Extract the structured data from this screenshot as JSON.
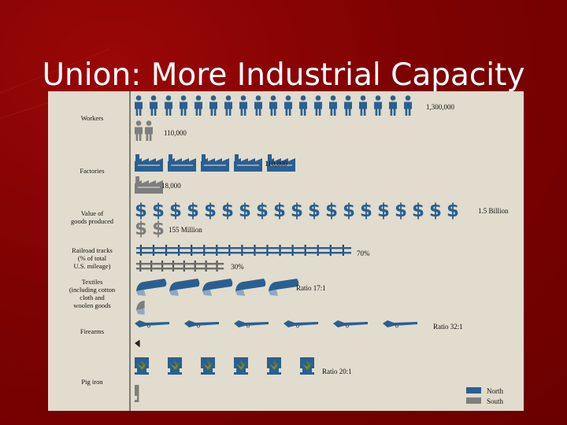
{
  "slide": {
    "title": "Union: More Industrial Capacity"
  },
  "colors": {
    "background": "#7f0202",
    "title_text": "#ffffff",
    "panel": "#e1dccd",
    "north": "#2b5f91",
    "south": "#7e7e7e"
  },
  "chart_data": {
    "type": "pictograph",
    "categories": [
      "Workers",
      "Factories",
      "Value of goods produced",
      "Railroad tracks (% of total U.S. mileage)",
      "Textiles (including cotton cloth and woolen goods)",
      "Firearms",
      "Pig iron"
    ],
    "category_label_lines": [
      [
        "Workers"
      ],
      [
        "Factories"
      ],
      [
        "Value of",
        "goods produced"
      ],
      [
        "Railroad tracks",
        "(% of total",
        "U.S. mileage)"
      ],
      [
        "Textiles",
        "(including cotton",
        "cloth and",
        "woolen goods"
      ],
      [
        "Firearms"
      ],
      [
        "Pig iron"
      ]
    ],
    "icons": [
      "person-icon",
      "factory-icon",
      "dollar-icon",
      "railroad-track-icon",
      "cloth-bolt-icon",
      "rifle-icon",
      "iron-furnace-icon"
    ],
    "series": [
      {
        "name": "North",
        "icon_counts": [
          19,
          5,
          19,
          1,
          5,
          6,
          6
        ],
        "labels": [
          "1,300,000",
          "110,000",
          "1.5 Billion",
          "70%",
          "Ratio 17:1",
          "Ratio 32:1",
          "Ratio 20:1"
        ],
        "values": [
          1300000,
          110000,
          1500000000,
          70,
          17,
          32,
          20
        ]
      },
      {
        "name": "South",
        "icon_counts": [
          2,
          1,
          2,
          1,
          0.3,
          0.15,
          0.3
        ],
        "labels": [
          "110,000",
          "18,000",
          "155 Million",
          "30%",
          "",
          "",
          ""
        ],
        "values": [
          110000,
          18000,
          155000000,
          30,
          1,
          1,
          1
        ]
      }
    ],
    "legend": {
      "position": "bottom-right",
      "items": [
        {
          "name": "North",
          "color": "#2b5f91"
        },
        {
          "name": "South",
          "color": "#7e7e7e"
        }
      ]
    },
    "grid": false
  }
}
